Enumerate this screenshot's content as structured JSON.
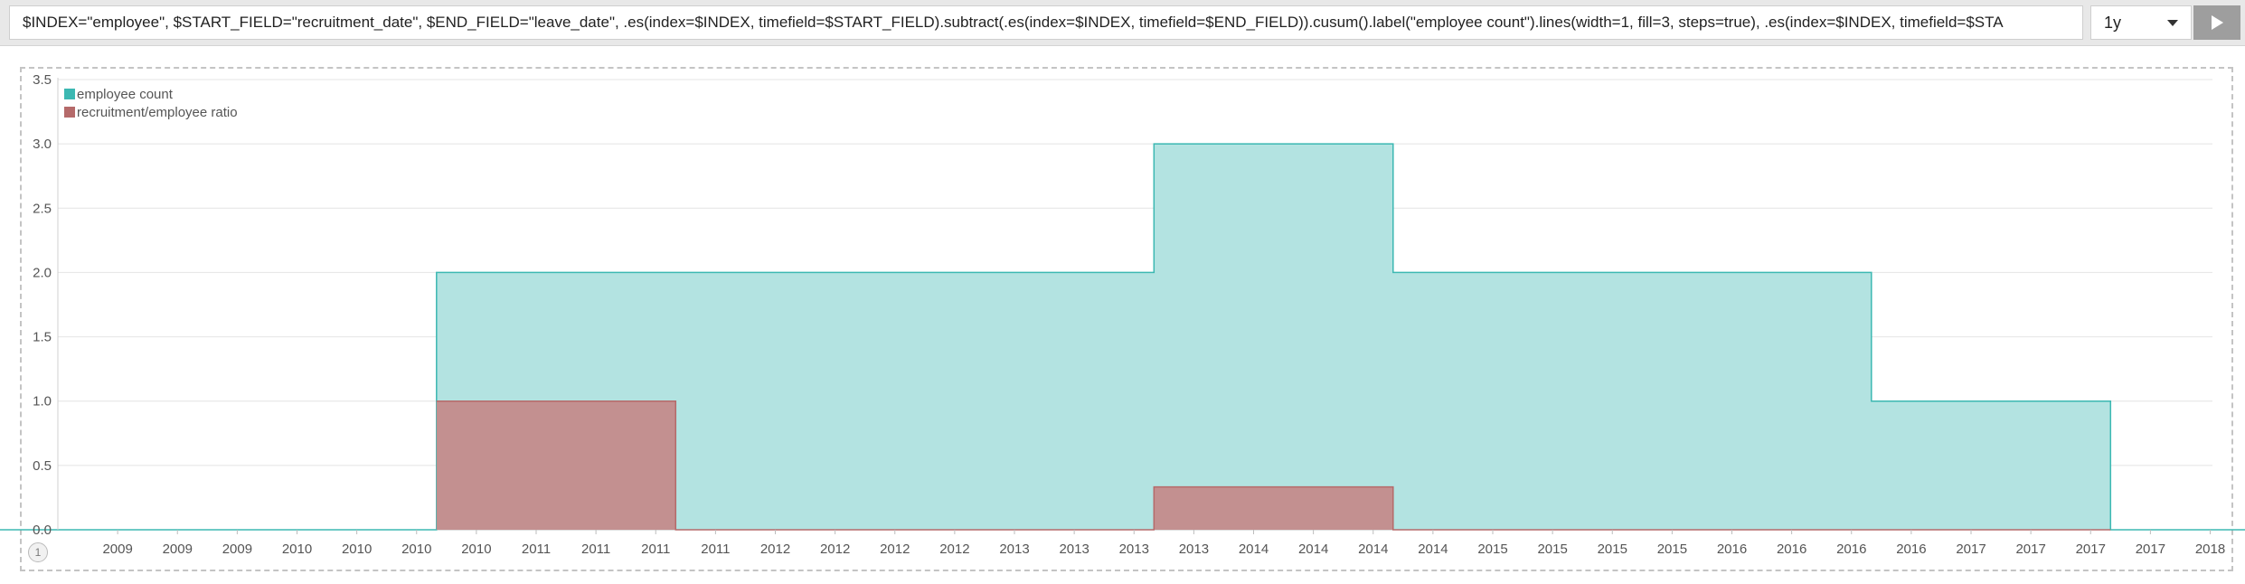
{
  "toolbar": {
    "expression": "$INDEX=\"employee\", $START_FIELD=\"recruitment_date\", $END_FIELD=\"leave_date\", .es(index=$INDEX, timefield=$START_FIELD).subtract(.es(index=$INDEX, timefield=$END_FIELD)).cusum().label(\"employee count\").lines(width=1, fill=3, steps=true), .es(index=$INDEX, timefield=$STA",
    "interval": "1y",
    "run_icon": "play-icon"
  },
  "pagination": {
    "current": "1"
  },
  "chart_data": {
    "type": "area",
    "step": true,
    "x_start": "2008-06",
    "x_step_months": 3,
    "x_tick_labels": [
      "2009",
      "2009",
      "2009",
      "2010",
      "2010",
      "2010",
      "2010",
      "2011",
      "2011",
      "2011",
      "2011",
      "2012",
      "2012",
      "2012",
      "2012",
      "2013",
      "2013",
      "2013",
      "2013",
      "2014",
      "2014",
      "2014",
      "2014",
      "2015",
      "2015",
      "2015",
      "2015",
      "2016",
      "2016",
      "2016",
      "2016",
      "2017",
      "2017",
      "2017",
      "2017",
      "2018"
    ],
    "ylim": [
      0,
      3.5
    ],
    "y_ticks": [
      "0.0",
      "0.5",
      "1.0",
      "1.5",
      "2.0",
      "2.5",
      "3.0",
      "3.5"
    ],
    "grid": true,
    "legend_position": "top-left",
    "series": [
      {
        "name": "employee count",
        "color": "#3cb8b2",
        "fill": "#b3e3e1",
        "points": [
          {
            "x": "2008",
            "y": 0
          },
          {
            "x": "2009",
            "y": 0
          },
          {
            "x": "2010",
            "y": 2
          },
          {
            "x": "2011",
            "y": 2
          },
          {
            "x": "2012",
            "y": 2
          },
          {
            "x": "2013",
            "y": 3
          },
          {
            "x": "2014",
            "y": 2
          },
          {
            "x": "2015",
            "y": 2
          },
          {
            "x": "2016",
            "y": 1
          },
          {
            "x": "2017",
            "y": 0
          },
          {
            "x": "2018",
            "y": 0
          }
        ]
      },
      {
        "name": "recruitment/employee ratio",
        "color": "#b56a6a",
        "fill": "#c48b8b",
        "points": [
          {
            "x": "2010",
            "y": 1
          },
          {
            "x": "2011",
            "y": 0
          },
          {
            "x": "2012",
            "y": 0
          },
          {
            "x": "2013",
            "y": 0.333
          },
          {
            "x": "2014",
            "y": 0
          },
          {
            "x": "2015",
            "y": 0
          },
          {
            "x": "2016",
            "y": 0
          }
        ]
      }
    ]
  }
}
